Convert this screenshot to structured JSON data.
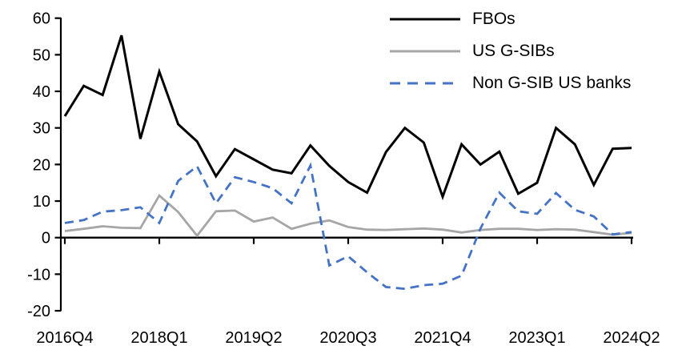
{
  "chart_data": {
    "type": "line",
    "title": "",
    "xlabel": "",
    "ylabel": "",
    "grid": false,
    "legend_position": "top-right",
    "ylim": [
      -20,
      60
    ],
    "y_ticks": [
      "60",
      "50",
      "40",
      "30",
      "20",
      "10",
      "0",
      "-10",
      "-20"
    ],
    "y_tick_values": [
      60,
      50,
      40,
      30,
      20,
      10,
      0,
      -10,
      -20
    ],
    "x_tick_every": 5,
    "x_tick_labels": [
      "2016Q4",
      "2018Q1",
      "2019Q2",
      "2020Q3",
      "2021Q4",
      "2023Q1",
      "2024Q2"
    ],
    "categories": [
      "2016Q4",
      "2017Q1",
      "2017Q2",
      "2017Q3",
      "2017Q4",
      "2018Q1",
      "2018Q2",
      "2018Q3",
      "2018Q4",
      "2019Q1",
      "2019Q2",
      "2019Q3",
      "2019Q4",
      "2020Q1",
      "2020Q2",
      "2020Q3",
      "2020Q4",
      "2021Q1",
      "2021Q2",
      "2021Q3",
      "2021Q4",
      "2022Q1",
      "2022Q2",
      "2022Q3",
      "2022Q4",
      "2023Q1",
      "2023Q2",
      "2023Q3",
      "2023Q4",
      "2024Q1",
      "2024Q2"
    ],
    "series": [
      {
        "name": "FBOs",
        "color": "#000000",
        "style": "solid",
        "values": [
          33.2,
          41.5,
          39.0,
          55.3,
          27.0,
          45.4,
          31.0,
          26.3,
          16.8,
          24.2,
          21.4,
          18.6,
          17.6,
          25.2,
          19.6,
          15.2,
          12.3,
          23.4,
          30.0,
          26.0,
          11.2,
          25.5,
          20.0,
          23.5,
          12.0,
          15.0,
          30.0,
          25.5,
          14.4,
          24.3,
          24.5
        ]
      },
      {
        "name": "US G-SIBs",
        "color": "#a6a6a6",
        "style": "solid",
        "values": [
          1.8,
          2.4,
          3.1,
          2.7,
          2.6,
          11.5,
          7.0,
          0.5,
          7.2,
          7.4,
          4.4,
          5.5,
          2.4,
          3.8,
          4.7,
          2.9,
          2.2,
          2.1,
          2.3,
          2.5,
          2.2,
          1.4,
          2.1,
          2.4,
          2.4,
          2.1,
          2.3,
          2.2,
          1.5,
          0.8,
          1.3
        ]
      },
      {
        "name": "Non G-SIB US banks",
        "color": "#4472c4",
        "style": "dashed",
        "values": [
          4.0,
          4.8,
          7.1,
          7.5,
          8.3,
          4.0,
          15.5,
          19.5,
          9.4,
          16.5,
          15.2,
          13.5,
          9.4,
          19.7,
          -7.6,
          -5.1,
          -9.5,
          -13.5,
          -14.0,
          -13.0,
          -12.6,
          -10.4,
          2.5,
          12.3,
          7.2,
          6.5,
          12.2,
          7.6,
          5.8,
          0.9,
          1.5
        ]
      }
    ]
  }
}
